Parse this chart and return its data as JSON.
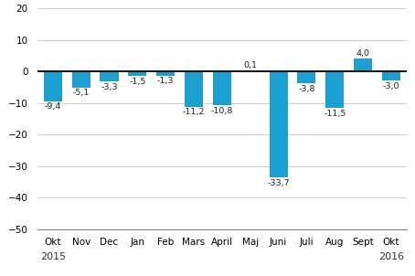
{
  "categories": [
    "Okt",
    "Nov",
    "Dec",
    "Jan",
    "Feb",
    "Mars",
    "April",
    "Maj",
    "Juni",
    "Juli",
    "Aug",
    "Sept",
    "Okt"
  ],
  "values": [
    -9.4,
    -5.1,
    -3.3,
    -1.5,
    -1.3,
    -11.2,
    -10.8,
    0.1,
    -33.7,
    -3.8,
    -11.5,
    4.0,
    -3.0
  ],
  "labels": [
    "-9,4",
    "-5,1",
    "-3,3",
    "-1,5",
    "-1,3",
    "-11,2",
    "-10,8",
    "0,1",
    "-33,7",
    "-3,8",
    "-11,5",
    "4,0",
    "-3,0"
  ],
  "bar_color": "#1b9fd0",
  "ylim": [
    -50,
    20
  ],
  "yticks": [
    -50,
    -40,
    -30,
    -20,
    -10,
    0,
    10,
    20
  ],
  "background_color": "#ffffff",
  "grid_color": "#c8c8c8",
  "zero_line_color": "#000000",
  "label_fontsize": 6.8,
  "tick_fontsize": 7.5,
  "year_fontsize": 8.0,
  "bar_width": 0.65
}
